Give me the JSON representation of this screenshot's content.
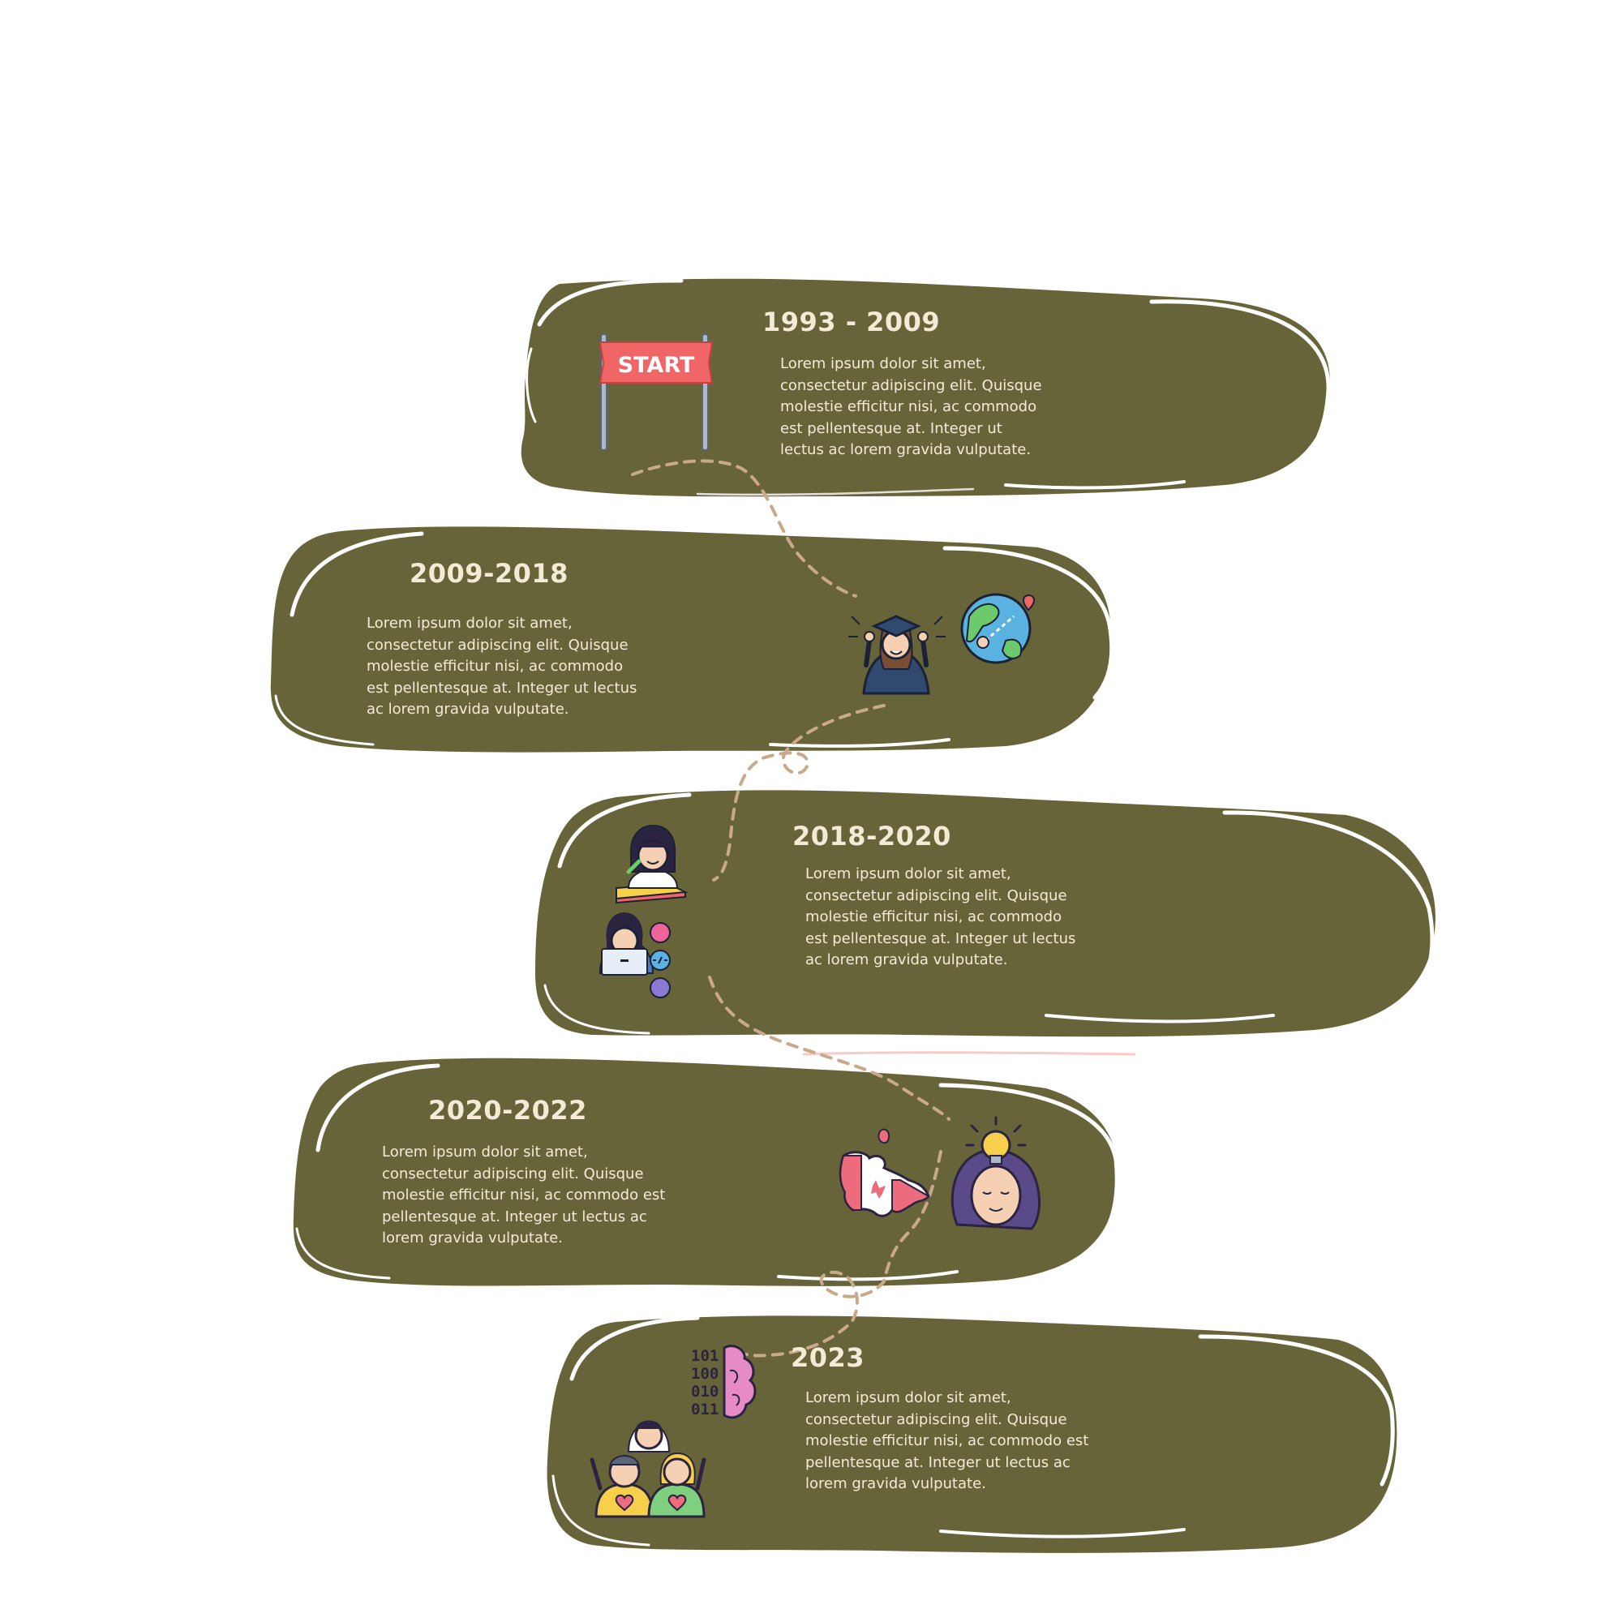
{
  "colors": {
    "blob_fill": "#68643a",
    "outline": "#ffffff",
    "text": "#f4ead6",
    "connector": "#c9a98a"
  },
  "stages": [
    {
      "title": "1993 - 2009",
      "description": "Lorem ipsum dolor sit amet,\nconsectetur adipiscing elit. Quisque\nmolestie efficitur nisi, ac commodo\nest pellentesque at. Integer ut\nlectus ac lorem gravida vulputate.",
      "icons": [
        "start-banner-icon"
      ],
      "banner_label": "START"
    },
    {
      "title": "2009-2018",
      "description": "Lorem ipsum dolor sit amet,\nconsectetur adipiscing elit. Quisque\nmolestie efficitur nisi, ac commodo\nest pellentesque at. Integer ut lectus\nac lorem gravida vulputate.",
      "icons": [
        "graduate-icon",
        "globe-travel-icon"
      ]
    },
    {
      "title": "2018-2020",
      "description": "Lorem ipsum dolor sit amet,\nconsectetur adipiscing elit. Quisque\nmolestie efficitur nisi, ac commodo\nest pellentesque at. Integer ut lectus\nac lorem gravida vulputate.",
      "icons": [
        "student-reading-icon",
        "developer-laptop-icon"
      ]
    },
    {
      "title": "2020-2022",
      "description": "Lorem ipsum dolor sit amet,\nconsectetur adipiscing elit. Quisque\nmolestie efficitur nisi, ac commodo est\npellentesque at. Integer ut lectus ac\nlorem gravida vulputate.",
      "icons": [
        "canada-map-icon",
        "idea-woman-icon"
      ]
    },
    {
      "title": "2023",
      "description": "Lorem ipsum dolor sit amet,\nconsectetur adipiscing elit. Quisque\nmolestie efficitur nisi, ac commodo est\npellentesque at. Integer ut lectus ac\nlorem gravida vulputate.",
      "icons": [
        "binary-brain-icon",
        "community-group-icon"
      ]
    }
  ]
}
